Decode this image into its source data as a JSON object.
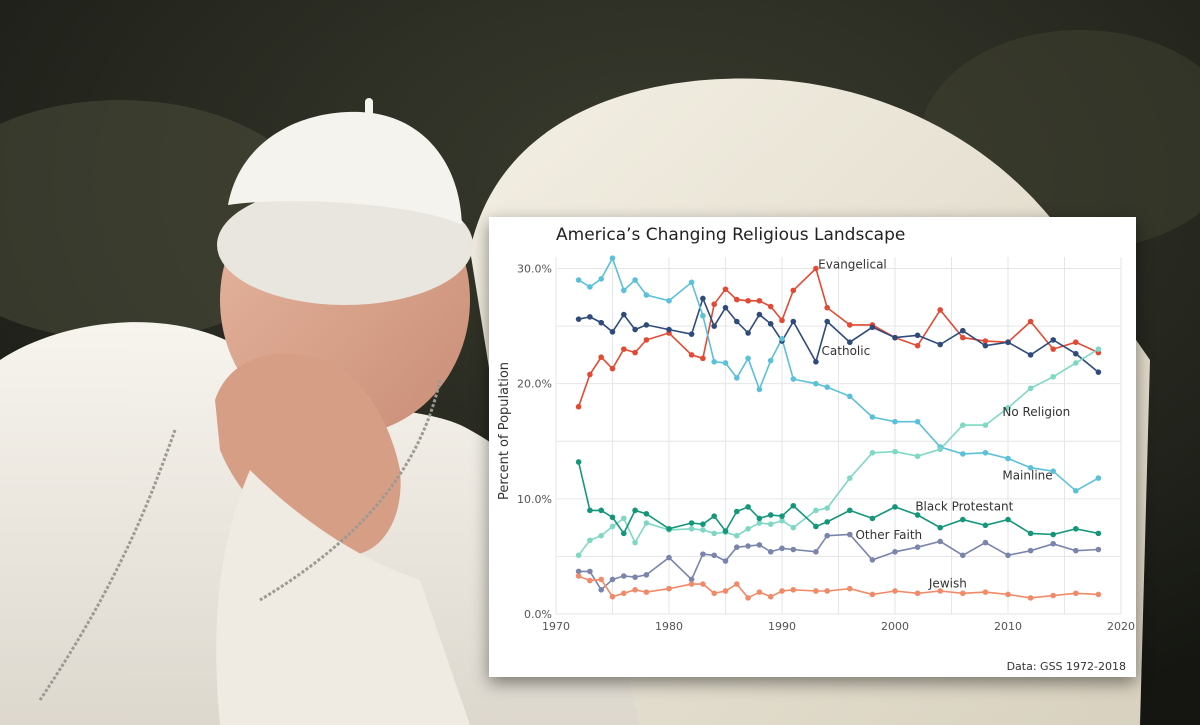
{
  "background": {
    "description_colors": {
      "robe": "#f2eee6",
      "chair": "#ece6d4",
      "backdrop": "#2a2c22",
      "skin": "#d9a48c"
    }
  },
  "chart_data": {
    "type": "line",
    "title": "America’s Changing Religious Landscape",
    "xlabel": "",
    "ylabel": "Percent of Population",
    "caption": "Data: GSS 1972-2018",
    "xlim": [
      1970,
      2020
    ],
    "ylim": [
      0,
      31
    ],
    "x_ticks": [
      1970,
      1980,
      1990,
      2000,
      2010,
      2020
    ],
    "y_ticks": [
      0,
      10,
      20,
      30
    ],
    "y_tick_labels": [
      "0.0%",
      "10.0%",
      "20.0%",
      "30.0%"
    ],
    "grid": true,
    "legend": "direct labels",
    "series": [
      {
        "name": "Evangelical",
        "color": "#e24a33",
        "x": [
          1972,
          1973,
          1974,
          1975,
          1976,
          1977,
          1978,
          1980,
          1982,
          1983,
          1984,
          1985,
          1986,
          1987,
          1988,
          1989,
          1990,
          1991,
          1993,
          1994,
          1996,
          1998,
          2000,
          2002,
          2004,
          2006,
          2008,
          2010,
          2012,
          2014,
          2016,
          2018
        ],
        "y": [
          18.0,
          20.8,
          22.3,
          21.3,
          23.0,
          22.7,
          23.8,
          24.4,
          22.5,
          22.2,
          26.9,
          28.2,
          27.3,
          27.2,
          27.2,
          26.7,
          25.5,
          28.1,
          30.0,
          26.6,
          25.1,
          25.1,
          24.0,
          23.3,
          26.4,
          24.0,
          23.7,
          23.6,
          25.4,
          23.0,
          23.6,
          22.7
        ]
      },
      {
        "name": "Catholic",
        "color": "#2f4b7c",
        "x": [
          1972,
          1973,
          1974,
          1975,
          1976,
          1977,
          1978,
          1980,
          1982,
          1983,
          1984,
          1985,
          1986,
          1987,
          1988,
          1989,
          1990,
          1991,
          1993,
          1994,
          1996,
          1998,
          2000,
          2002,
          2004,
          2006,
          2008,
          2010,
          2012,
          2014,
          2016,
          2018
        ],
        "y": [
          25.6,
          25.8,
          25.3,
          24.5,
          26.0,
          24.7,
          25.1,
          24.7,
          24.3,
          27.4,
          25.0,
          26.6,
          25.4,
          24.4,
          26.0,
          25.2,
          23.7,
          25.4,
          21.9,
          25.4,
          23.6,
          24.9,
          24.0,
          24.2,
          23.4,
          24.6,
          23.3,
          23.6,
          22.5,
          23.8,
          22.6,
          21.0
        ]
      },
      {
        "name": "Mainline",
        "color": "#5bc0d9",
        "x": [
          1972,
          1973,
          1974,
          1975,
          1976,
          1977,
          1978,
          1980,
          1982,
          1983,
          1984,
          1985,
          1986,
          1987,
          1988,
          1989,
          1990,
          1991,
          1993,
          1994,
          1996,
          1998,
          2000,
          2002,
          2004,
          2006,
          2008,
          2010,
          2012,
          2014,
          2016,
          2018
        ],
        "y": [
          29.0,
          28.4,
          29.1,
          30.9,
          28.1,
          29.0,
          27.7,
          27.2,
          28.8,
          25.9,
          21.9,
          21.8,
          20.5,
          22.2,
          19.5,
          22.0,
          23.9,
          20.4,
          20.0,
          19.7,
          18.9,
          17.1,
          16.7,
          16.7,
          14.5,
          13.9,
          14.0,
          13.5,
          12.7,
          12.4,
          10.7,
          11.8
        ]
      },
      {
        "name": "No Religion",
        "color": "#7fd8c4",
        "x": [
          1972,
          1973,
          1974,
          1975,
          1976,
          1977,
          1978,
          1980,
          1982,
          1983,
          1984,
          1985,
          1986,
          1987,
          1988,
          1989,
          1990,
          1991,
          1993,
          1994,
          1996,
          1998,
          2000,
          2002,
          2004,
          2006,
          2008,
          2010,
          2012,
          2014,
          2016,
          2018
        ],
        "y": [
          5.1,
          6.4,
          6.8,
          7.6,
          8.3,
          6.2,
          7.9,
          7.3,
          7.4,
          7.3,
          7.0,
          7.1,
          6.8,
          7.4,
          7.9,
          7.8,
          8.1,
          7.5,
          9.0,
          9.2,
          11.8,
          14.0,
          14.1,
          13.7,
          14.3,
          16.4,
          16.4,
          17.9,
          19.6,
          20.6,
          21.8,
          23.0
        ]
      },
      {
        "name": "Black Protestant",
        "color": "#13967a",
        "x": [
          1972,
          1973,
          1974,
          1975,
          1976,
          1977,
          1978,
          1980,
          1982,
          1983,
          1984,
          1985,
          1986,
          1987,
          1988,
          1989,
          1990,
          1991,
          1993,
          1994,
          1996,
          1998,
          2000,
          2002,
          2004,
          2006,
          2008,
          2010,
          2012,
          2014,
          2016,
          2018
        ],
        "y": [
          13.2,
          9.0,
          9.0,
          8.4,
          7.0,
          9.0,
          8.7,
          7.4,
          7.9,
          7.8,
          8.5,
          7.2,
          8.9,
          9.3,
          8.3,
          8.6,
          8.5,
          9.4,
          7.6,
          8.0,
          9.0,
          8.3,
          9.3,
          8.6,
          7.5,
          8.2,
          7.7,
          8.2,
          7.0,
          6.9,
          7.4,
          7.0
        ]
      },
      {
        "name": "Other Faith",
        "color": "#7b84aa",
        "x": [
          1972,
          1973,
          1974,
          1975,
          1976,
          1977,
          1978,
          1980,
          1982,
          1983,
          1984,
          1985,
          1986,
          1987,
          1988,
          1989,
          1990,
          1991,
          1993,
          1994,
          1996,
          1998,
          2000,
          2002,
          2004,
          2006,
          2008,
          2010,
          2012,
          2014,
          2016,
          2018
        ],
        "y": [
          3.7,
          3.7,
          2.1,
          3.0,
          3.3,
          3.2,
          3.4,
          4.9,
          3.0,
          5.2,
          5.1,
          4.6,
          5.8,
          5.9,
          6.0,
          5.4,
          5.7,
          5.6,
          5.4,
          6.8,
          6.9,
          4.7,
          5.4,
          5.8,
          6.3,
          5.1,
          6.2,
          5.1,
          5.5,
          6.1,
          5.5,
          5.6
        ]
      },
      {
        "name": "Jewish",
        "color": "#f08a68",
        "x": [
          1972,
          1973,
          1974,
          1975,
          1976,
          1977,
          1978,
          1980,
          1982,
          1983,
          1984,
          1985,
          1986,
          1987,
          1988,
          1989,
          1990,
          1991,
          1993,
          1994,
          1996,
          1998,
          2000,
          2002,
          2004,
          2006,
          2008,
          2010,
          2012,
          2014,
          2016,
          2018
        ],
        "y": [
          3.3,
          2.9,
          3.0,
          1.5,
          1.8,
          2.1,
          1.9,
          2.2,
          2.6,
          2.6,
          1.8,
          2.0,
          2.6,
          1.4,
          1.9,
          1.5,
          2.0,
          2.1,
          2.0,
          2.0,
          2.2,
          1.7,
          2.0,
          1.8,
          2.0,
          1.8,
          1.9,
          1.7,
          1.4,
          1.6,
          1.8,
          1.7
        ]
      }
    ],
    "annotations": [
      {
        "text": "Evangelical",
        "x": 1993.2,
        "y": 30.0
      },
      {
        "text": "Catholic",
        "x": 1993.5,
        "y": 22.5
      },
      {
        "text": "No Religion",
        "x": 2009.5,
        "y": 17.2
      },
      {
        "text": "Mainline",
        "x": 2009.5,
        "y": 11.7
      },
      {
        "text": "Black Protestant",
        "x": 2001.8,
        "y": 9.0
      },
      {
        "text": "Other Faith",
        "x": 1996.5,
        "y": 6.5
      },
      {
        "text": "Jewish",
        "x": 2003.0,
        "y": 2.3
      }
    ]
  }
}
